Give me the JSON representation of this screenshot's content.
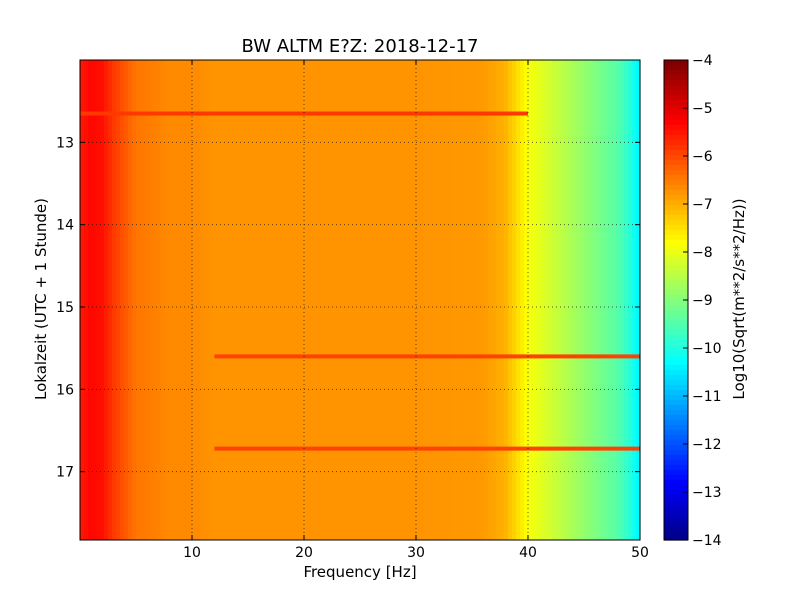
{
  "chart_data": {
    "type": "heatmap",
    "title": "BW ALTM E?Z: 2018-12-17",
    "xlabel": "Frequency [Hz]",
    "ylabel": "Lokalzeit (UTC + 1 Stunde)",
    "colorbar_label": "Log10(Sqrt(m**2/s**2/Hz))",
    "xlim": [
      0.0,
      50.0
    ],
    "ylim": [
      12.0,
      17.83
    ],
    "y_inverted": true,
    "x_ticks": [
      10,
      20,
      30,
      40,
      50
    ],
    "x_tick_labels": [
      "10",
      "20",
      "30",
      "40",
      "50"
    ],
    "y_ticks": [
      13,
      14,
      15,
      16,
      17
    ],
    "y_tick_labels": [
      "13",
      "14",
      "15",
      "16",
      "17"
    ],
    "colorbar_range": [
      -14,
      -4
    ],
    "colorbar_ticks": [
      -4,
      -5,
      -6,
      -7,
      -8,
      -9,
      -10,
      -11,
      -12,
      -13,
      -14
    ],
    "colorbar_tick_labels": [
      "−4",
      "−5",
      "−6",
      "−7",
      "−8",
      "−9",
      "−10",
      "−11",
      "−12",
      "−13",
      "−14"
    ],
    "colormap": "jet",
    "grid": true,
    "spectrum_profile": {
      "frequency_hz": [
        0,
        1,
        2,
        3,
        4,
        5,
        8,
        10,
        12,
        20,
        30,
        36,
        38,
        39,
        40,
        41,
        42,
        44,
        46,
        48,
        49,
        50
      ],
      "log10_amplitude": [
        -5.5,
        -5.3,
        -5.4,
        -5.8,
        -6.1,
        -6.4,
        -6.6,
        -6.6,
        -6.7,
        -6.7,
        -6.7,
        -6.75,
        -7.0,
        -7.4,
        -7.8,
        -8.0,
        -8.2,
        -8.6,
        -9.0,
        -9.4,
        -9.8,
        -10.4
      ]
    },
    "horizontal_lines": [
      {
        "time_h": 12.65,
        "f_start_hz": 0,
        "f_end_hz": 40,
        "log10_amplitude": -5.8
      },
      {
        "time_h": 15.6,
        "f_start_hz": 12,
        "f_end_hz": 50,
        "log10_amplitude": -5.9
      },
      {
        "time_h": 16.72,
        "f_start_hz": 12,
        "f_end_hz": 50,
        "log10_amplitude": -5.9
      }
    ]
  }
}
